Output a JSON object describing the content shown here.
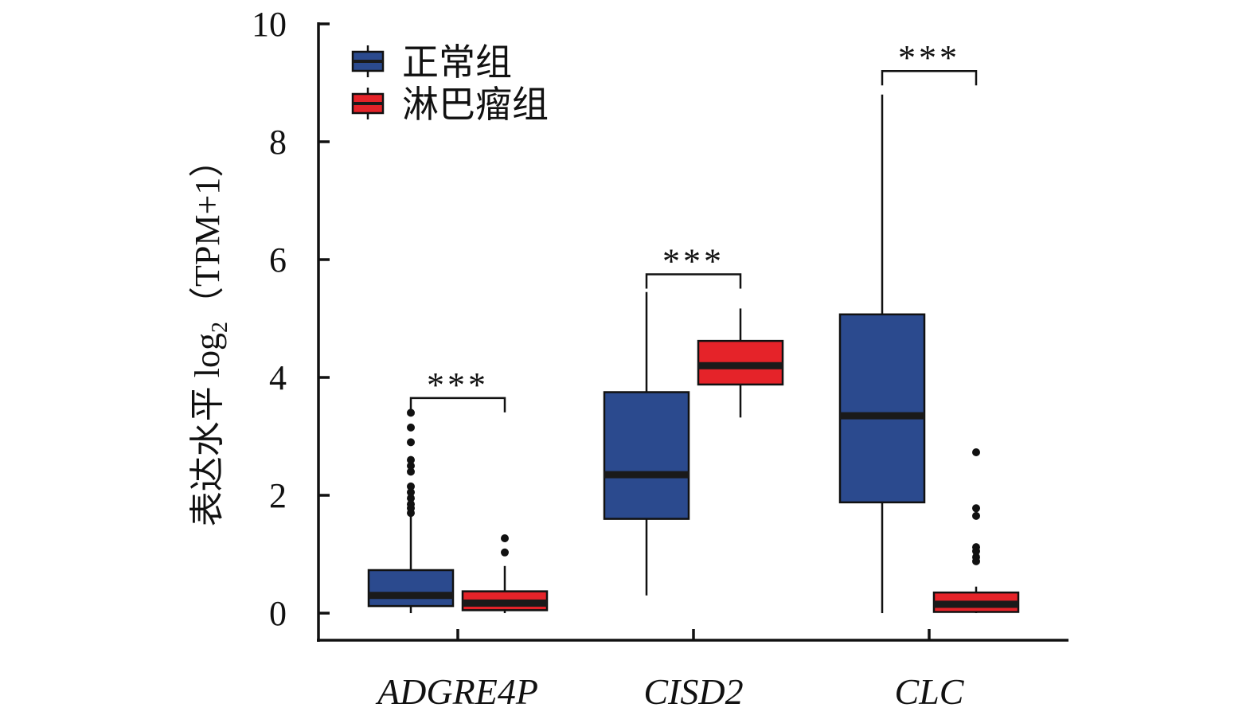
{
  "chart_data": {
    "type": "box",
    "ylabel": "表达水平 log",
    "ylabel_sub": "2",
    "ylabel_suffix": "（TPM+1）",
    "ylim": [
      0,
      10
    ],
    "yticks": [
      0,
      2,
      4,
      6,
      8,
      10
    ],
    "categories": [
      "ADGRE4P",
      "CISD2",
      "CLC"
    ],
    "legend_position": "top-left",
    "series": [
      {
        "name": "正常组",
        "color": "#2b4a8e",
        "boxes": [
          {
            "q1": 0.12,
            "median": 0.3,
            "q3": 0.73,
            "whisker_low": 0.0,
            "whisker_high": 1.65,
            "outliers": [
              1.7,
              1.78,
              1.85,
              1.95,
              2.05,
              2.15,
              2.4,
              2.5,
              2.6,
              2.9,
              3.15,
              3.4
            ]
          },
          {
            "q1": 1.6,
            "median": 2.35,
            "q3": 3.75,
            "whisker_low": 0.3,
            "whisker_high": 5.45,
            "outliers": []
          },
          {
            "q1": 1.88,
            "median": 3.35,
            "q3": 5.07,
            "whisker_low": 0.0,
            "whisker_high": 8.8,
            "outliers": []
          }
        ]
      },
      {
        "name": "淋巴瘤组",
        "color": "#e52329",
        "boxes": [
          {
            "q1": 0.05,
            "median": 0.17,
            "q3": 0.37,
            "whisker_low": 0.0,
            "whisker_high": 0.8,
            "outliers": [
              1.03,
              1.27
            ]
          },
          {
            "q1": 3.88,
            "median": 4.2,
            "q3": 4.62,
            "whisker_low": 3.32,
            "whisker_high": 5.17,
            "outliers": []
          },
          {
            "q1": 0.02,
            "median": 0.15,
            "q3": 0.35,
            "whisker_low": 0.0,
            "whisker_high": 0.45,
            "outliers": [
              0.88,
              0.95,
              1.05,
              1.12,
              1.65,
              1.78,
              2.73
            ]
          }
        ]
      }
    ],
    "significance": [
      {
        "category": "ADGRE4P",
        "label": "***",
        "y": 3.65
      },
      {
        "category": "CISD2",
        "label": "***",
        "y": 5.75
      },
      {
        "category": "CLC",
        "label": "***",
        "y": 9.2
      }
    ]
  }
}
